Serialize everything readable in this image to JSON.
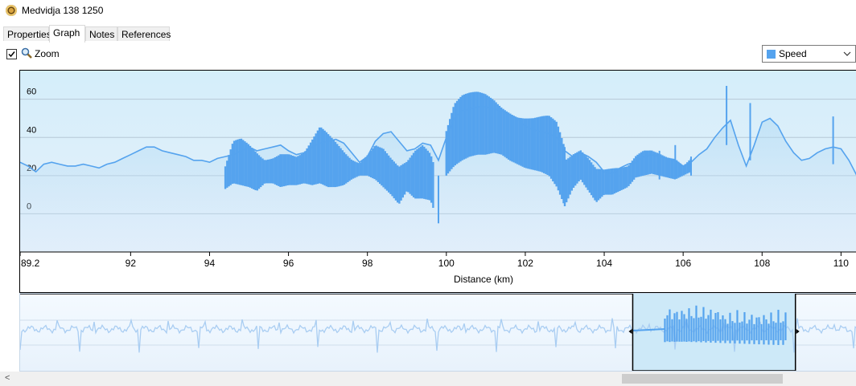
{
  "window": {
    "title": "Medvidja 138 1250"
  },
  "tabs": [
    {
      "label": "Properties",
      "active": false
    },
    {
      "label": "Graph",
      "active": true
    },
    {
      "label": "Notes",
      "active": false
    },
    {
      "label": "References",
      "active": false
    }
  ],
  "toolbar": {
    "zoom_label": "Zoom",
    "zoom_checked": true,
    "metric_selected": "Speed",
    "metric_color": "#55a3ee"
  },
  "colors": {
    "series": "#55a3ee",
    "overview_series": "#a9cdf2",
    "bg_top": "#d4eefa",
    "bg_bottom": "#e6f0fb"
  },
  "chart_data": {
    "type": "line",
    "xlabel": "Distance (km)",
    "ylabel": "",
    "series_name": "Speed",
    "x_ticks": [
      "89.2",
      "92",
      "94",
      "96",
      "98",
      "100",
      "102",
      "104",
      "106",
      "108",
      "110"
    ],
    "y_ticks": [
      "0",
      "20",
      "40",
      "60"
    ],
    "xlim": [
      89.2,
      110.4
    ],
    "ylim": [
      -20,
      75
    ],
    "overview_selection_km": [
      104.6,
      108.6
    ],
    "profile": [
      [
        89.2,
        27
      ],
      [
        89.4,
        25
      ],
      [
        89.6,
        22
      ],
      [
        89.8,
        26
      ],
      [
        90.0,
        27
      ],
      [
        90.2,
        26
      ],
      [
        90.4,
        25
      ],
      [
        90.6,
        25
      ],
      [
        90.8,
        26
      ],
      [
        91.0,
        25
      ],
      [
        91.2,
        24
      ],
      [
        91.4,
        26
      ],
      [
        91.6,
        27
      ],
      [
        91.8,
        29
      ],
      [
        92.0,
        31
      ],
      [
        92.2,
        33
      ],
      [
        92.4,
        35
      ],
      [
        92.6,
        35
      ],
      [
        92.8,
        33
      ],
      [
        93.0,
        32
      ],
      [
        93.2,
        31
      ],
      [
        93.4,
        30
      ],
      [
        93.6,
        28
      ],
      [
        93.8,
        28
      ],
      [
        94.0,
        27
      ],
      [
        94.2,
        29
      ],
      [
        94.4,
        30
      ],
      [
        94.6,
        31
      ],
      [
        94.8,
        33
      ],
      [
        95.0,
        35
      ],
      [
        95.2,
        33
      ],
      [
        95.4,
        34
      ],
      [
        95.6,
        35
      ],
      [
        95.8,
        36
      ],
      [
        96.0,
        33
      ],
      [
        96.2,
        31
      ],
      [
        96.4,
        32
      ],
      [
        96.6,
        35
      ],
      [
        96.8,
        37
      ],
      [
        97.0,
        38
      ],
      [
        97.2,
        39
      ],
      [
        97.4,
        37
      ],
      [
        97.6,
        32
      ],
      [
        97.8,
        27
      ],
      [
        98.0,
        30
      ],
      [
        98.2,
        38
      ],
      [
        98.4,
        42
      ],
      [
        98.6,
        43
      ],
      [
        98.8,
        38
      ],
      [
        99.0,
        33
      ],
      [
        99.2,
        34
      ],
      [
        99.4,
        37
      ],
      [
        99.6,
        36
      ],
      [
        99.8,
        28
      ],
      [
        100.0,
        40
      ],
      [
        100.2,
        50
      ],
      [
        100.4,
        54
      ],
      [
        100.6,
        55
      ],
      [
        100.8,
        56
      ],
      [
        101.0,
        56
      ],
      [
        101.2,
        55
      ],
      [
        101.4,
        54
      ],
      [
        101.6,
        52
      ],
      [
        101.8,
        50
      ],
      [
        102.0,
        46
      ],
      [
        102.2,
        44
      ],
      [
        102.4,
        43
      ],
      [
        102.6,
        42
      ],
      [
        102.8,
        40
      ],
      [
        103.0,
        33
      ],
      [
        103.2,
        30
      ],
      [
        103.4,
        32
      ],
      [
        103.6,
        30
      ],
      [
        103.8,
        27
      ],
      [
        104.0,
        22
      ],
      [
        104.2,
        21
      ],
      [
        104.4,
        24
      ],
      [
        104.6,
        26
      ],
      [
        104.8,
        27
      ],
      [
        105.0,
        30
      ],
      [
        105.2,
        31
      ],
      [
        105.4,
        30
      ],
      [
        105.6,
        29
      ],
      [
        105.8,
        28
      ],
      [
        106.0,
        25
      ],
      [
        106.2,
        27
      ],
      [
        106.4,
        31
      ],
      [
        106.6,
        34
      ],
      [
        106.8,
        40
      ],
      [
        107.0,
        45
      ],
      [
        107.2,
        49
      ],
      [
        107.4,
        36
      ],
      [
        107.6,
        25
      ],
      [
        107.8,
        36
      ],
      [
        108.0,
        48
      ],
      [
        108.2,
        50
      ],
      [
        108.4,
        46
      ],
      [
        108.6,
        38
      ],
      [
        108.8,
        32
      ],
      [
        109.0,
        28
      ],
      [
        109.2,
        29
      ],
      [
        109.4,
        32
      ],
      [
        109.6,
        34
      ],
      [
        109.8,
        35
      ],
      [
        110.0,
        34
      ],
      [
        110.2,
        28
      ],
      [
        110.4,
        20
      ]
    ],
    "ranges": [
      [
        94.4,
        25,
        13
      ],
      [
        94.6,
        38,
        16
      ],
      [
        94.8,
        40,
        15
      ],
      [
        95.0,
        38,
        14
      ],
      [
        95.2,
        35,
        12
      ],
      [
        95.4,
        31,
        16
      ],
      [
        95.6,
        33,
        16
      ],
      [
        95.8,
        37,
        14
      ],
      [
        96.0,
        36,
        15
      ],
      [
        96.2,
        33,
        15
      ],
      [
        96.4,
        34,
        16
      ],
      [
        96.6,
        40,
        15
      ],
      [
        96.8,
        46,
        16
      ],
      [
        97.0,
        42,
        14
      ],
      [
        97.2,
        38,
        14
      ],
      [
        97.4,
        34,
        15
      ],
      [
        97.6,
        30,
        18
      ],
      [
        97.8,
        28,
        20
      ],
      [
        98.0,
        34,
        20
      ],
      [
        98.2,
        42,
        18
      ],
      [
        98.4,
        40,
        14
      ],
      [
        98.6,
        33,
        10
      ],
      [
        98.8,
        27,
        5
      ],
      [
        99.0,
        28,
        12
      ],
      [
        99.2,
        33,
        8
      ],
      [
        99.4,
        36,
        8
      ],
      [
        99.6,
        32,
        7
      ],
      [
        99.8,
        20,
        -5
      ],
      [
        100.0,
        45,
        20
      ],
      [
        100.2,
        58,
        25
      ],
      [
        100.4,
        62,
        28
      ],
      [
        100.6,
        64,
        30
      ],
      [
        100.8,
        66,
        31
      ],
      [
        101.0,
        67,
        31
      ],
      [
        101.2,
        66,
        32
      ],
      [
        101.4,
        63,
        31
      ],
      [
        101.6,
        61,
        28
      ],
      [
        101.8,
        58,
        26
      ],
      [
        102.0,
        56,
        24
      ],
      [
        102.2,
        54,
        23
      ],
      [
        102.4,
        53,
        22
      ],
      [
        102.6,
        52,
        20
      ],
      [
        102.8,
        48,
        14
      ],
      [
        103.0,
        35,
        4
      ],
      [
        103.2,
        37,
        13
      ],
      [
        103.4,
        38,
        18
      ],
      [
        103.6,
        33,
        12
      ],
      [
        103.8,
        26,
        6
      ],
      [
        104.0,
        24,
        10
      ],
      [
        104.2,
        24,
        10
      ],
      [
        104.4,
        24,
        12
      ],
      [
        104.6,
        25,
        14
      ],
      [
        104.8,
        31,
        19
      ],
      [
        105.0,
        35,
        20
      ],
      [
        105.2,
        36,
        21
      ],
      [
        105.4,
        35,
        20
      ],
      [
        105.6,
        33,
        19
      ],
      [
        105.8,
        32,
        18
      ],
      [
        106.0,
        26,
        20
      ],
      [
        106.2,
        30,
        22
      ],
      [
        107.1,
        67,
        36
      ],
      [
        107.7,
        58,
        28
      ],
      [
        108.0,
        52,
        38
      ],
      [
        108.2,
        52,
        40
      ],
      [
        108.4,
        50,
        36
      ],
      [
        109.6,
        41,
        20
      ],
      [
        109.8,
        51,
        26
      ],
      [
        110.0,
        48,
        22
      ]
    ]
  }
}
